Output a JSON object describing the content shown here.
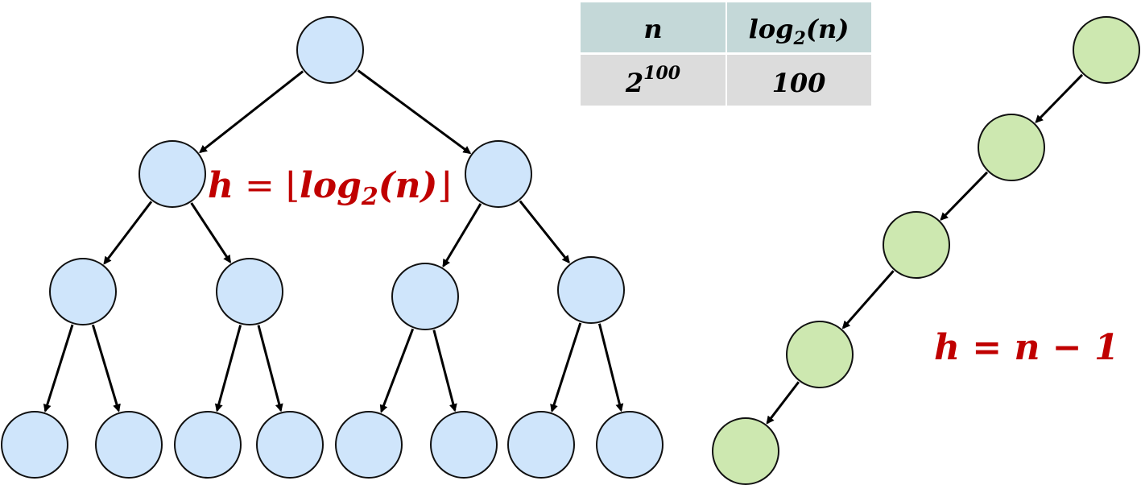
{
  "table": {
    "header": {
      "col1": "n",
      "col2_base": "log",
      "col2_sub": "2",
      "col2_arg": "(n)"
    },
    "row": {
      "col1_base": "2",
      "col1_exp": "100",
      "col2": "100"
    },
    "colors": {
      "header_bg": "#c4d8d8",
      "row_bg": "#dcdcdc"
    }
  },
  "balanced_tree": {
    "levels": 4,
    "node_color": "#cfe5fb",
    "height_label": {
      "lhs": "h",
      "eq": " = ",
      "floor_open": "⌊",
      "log": "log",
      "sub": "2",
      "arg": "(n)",
      "floor_close": "⌋"
    }
  },
  "degenerate_tree": {
    "nodes": 5,
    "node_color": "#cde8b0",
    "height_label": {
      "text": "h = n − 1"
    }
  },
  "label_color": "#c00000"
}
